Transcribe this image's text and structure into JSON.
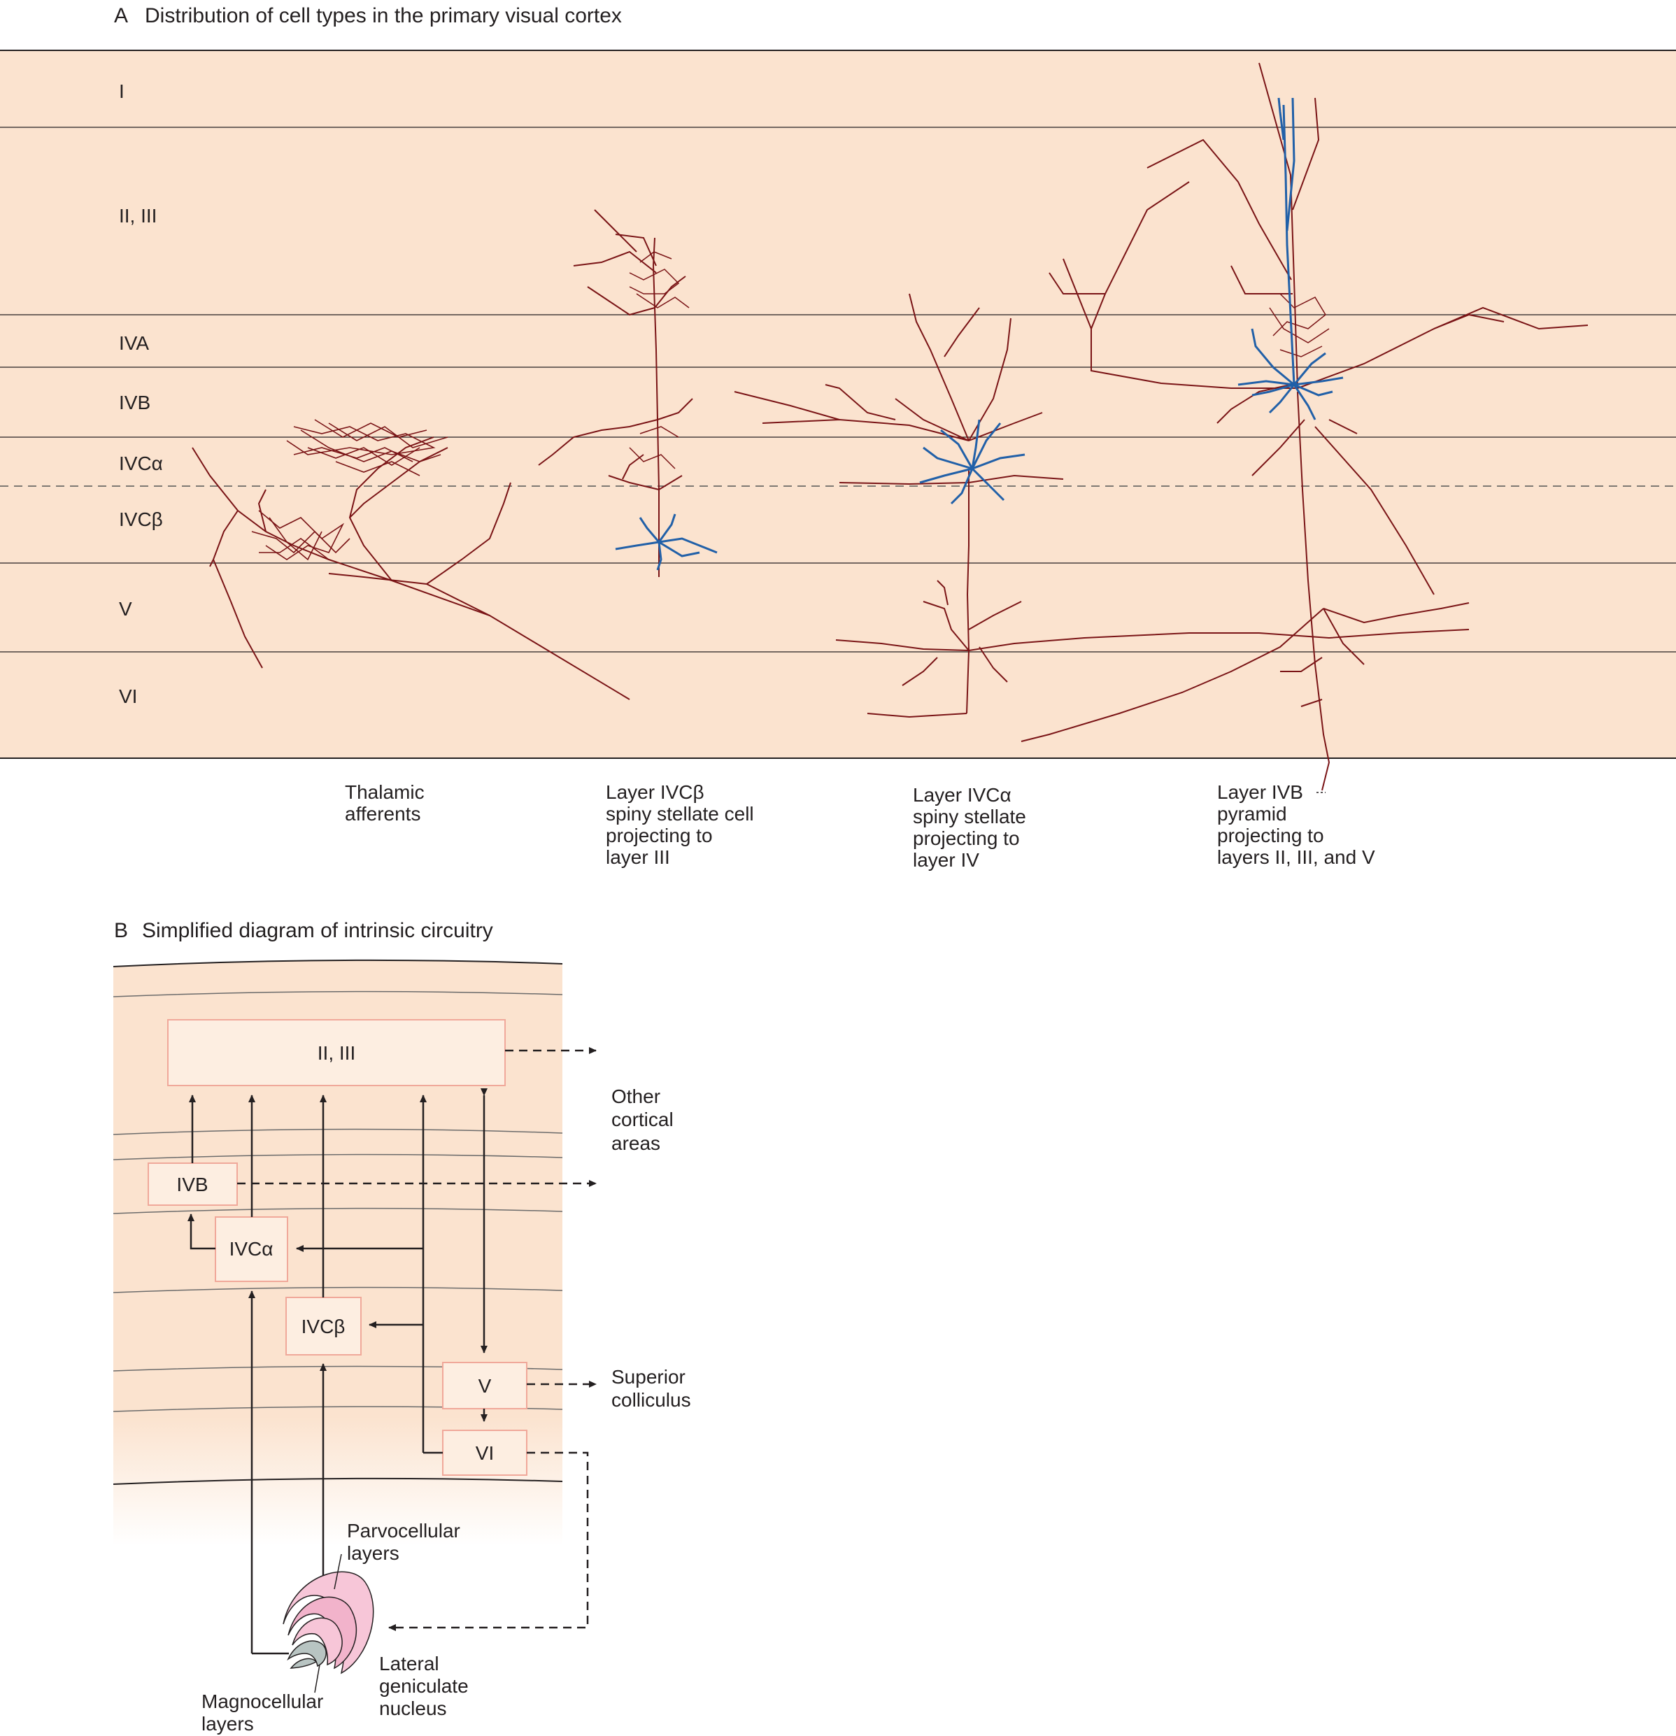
{
  "panel_a": {
    "letter": "A",
    "title": "Distribution of cell types in the primary visual cortex",
    "layers": [
      "I",
      "II, III",
      "IVA",
      "IVB",
      "IVCα",
      "IVCβ",
      "V",
      "VI"
    ],
    "captions": [
      [
        "Thalamic",
        "afferents"
      ],
      [
        "Layer IVCβ",
        "spiny stellate cell",
        "projecting to",
        "layer III"
      ],
      [
        "Layer IVCα",
        "spiny stellate",
        "projecting to",
        "layer IV"
      ],
      [
        "Layer IVB",
        "pyramid",
        "projecting to",
        "layers II, III, and V"
      ]
    ]
  },
  "panel_b": {
    "letter": "B",
    "title": "Simplified diagram of intrinsic circuitry",
    "boxes": {
      "l23": "II, III",
      "ivb": "IVB",
      "ivca": "IVCα",
      "ivcb": "IVCβ",
      "v": "V",
      "vi": "VI"
    },
    "outputs": {
      "other_cortical": [
        "Other",
        "cortical",
        "areas"
      ],
      "superior_colliculus": [
        "Superior",
        "colliculus"
      ]
    },
    "lgn": {
      "parvocellular": [
        "Parvocellular",
        "layers"
      ],
      "magnocellular": [
        "Magnocellular",
        "layers"
      ],
      "name": [
        "Lateral",
        "geniculate",
        "nucleus"
      ]
    }
  },
  "colors": {
    "cortex_fill": "#fbe3cf",
    "axon": "#7a1416",
    "dendrite": "#2160a8",
    "box_border": "#f0a89a",
    "box_fill": "#fdeee1",
    "lgn_pink": "#f7c6d8",
    "lgn_grey": "#b8c4c2"
  }
}
